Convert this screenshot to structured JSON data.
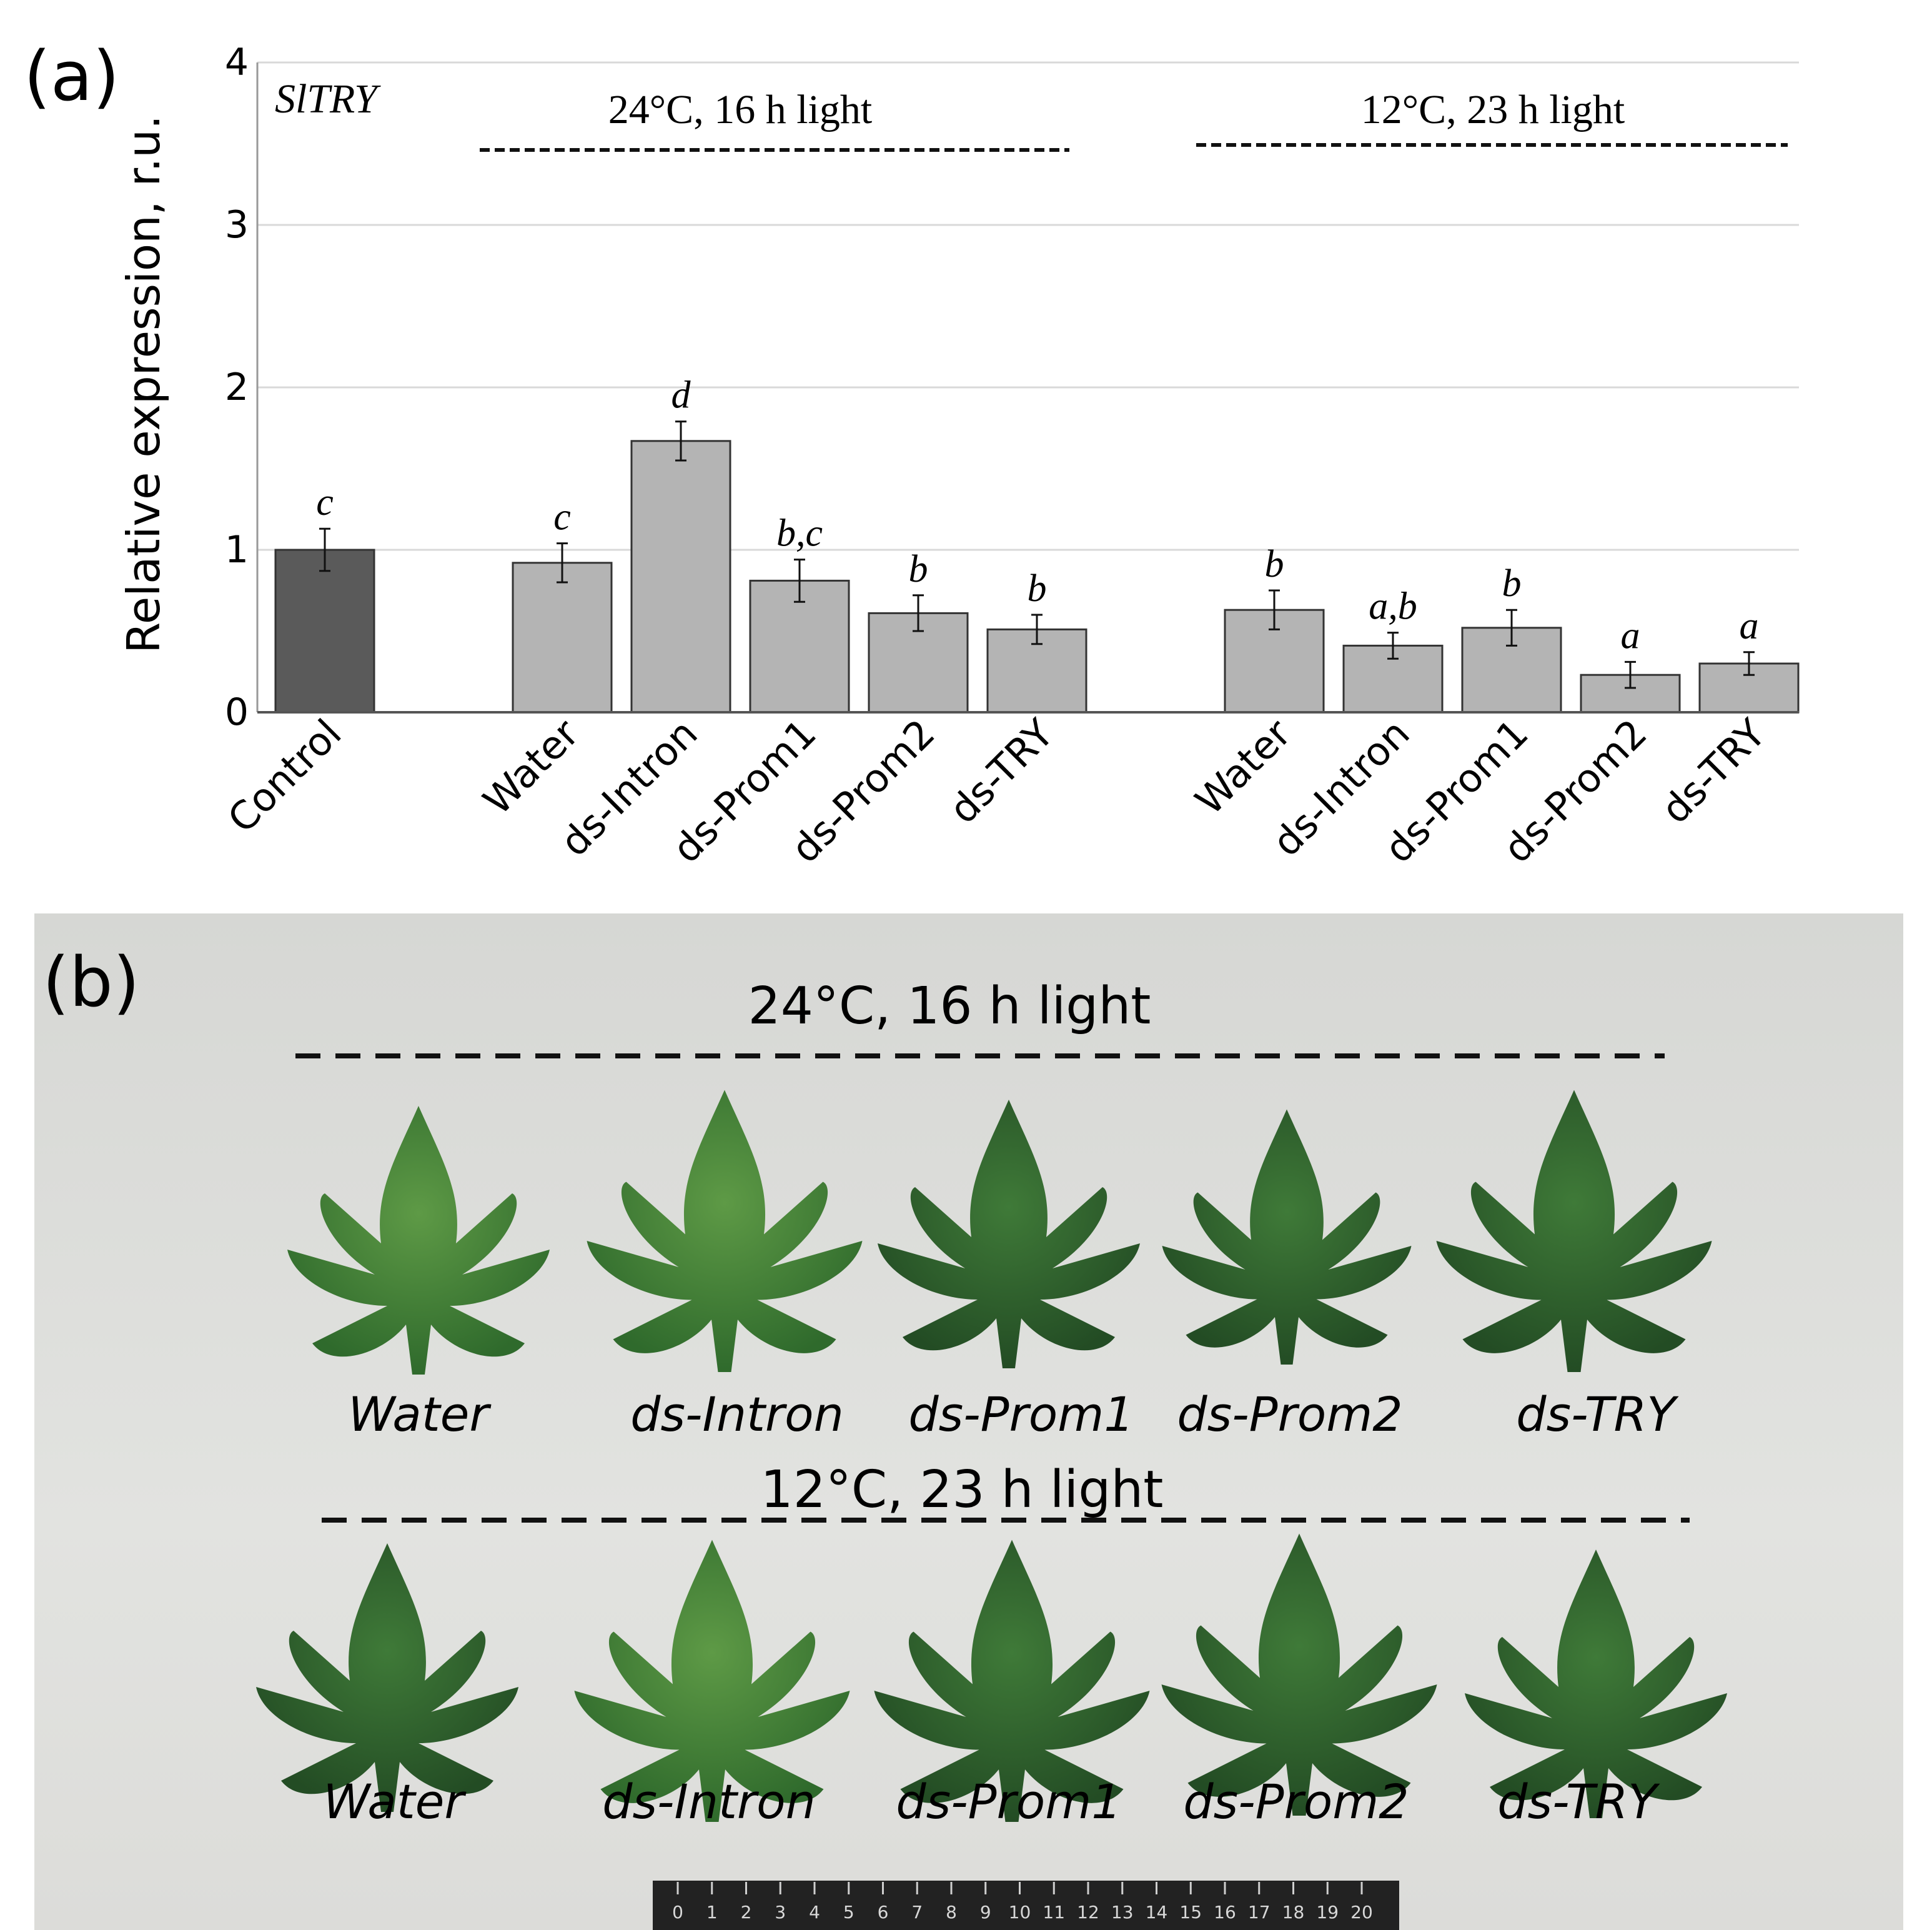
{
  "panel_a": {
    "label": "(a)",
    "gene": "SlTRY",
    "group1_title": "24°C, 16 h light",
    "group2_title": "12°C, 23 h light"
  },
  "chart_data": {
    "type": "bar",
    "title": "SlTRY",
    "xlabel": "",
    "ylabel": "Relative expression, r.u.",
    "ylim": [
      0,
      4
    ],
    "yticks": [
      0,
      1,
      2,
      3,
      4
    ],
    "grid": true,
    "categories": [
      "Control",
      "Water",
      "ds-Intron",
      "ds-Prom1",
      "ds-Prom2",
      "ds-TRY",
      "Water",
      "ds-Intron",
      "ds-Prom1",
      "ds-Prom2",
      "ds-TRY"
    ],
    "groups": [
      "",
      "24°C, 16 h light",
      "24°C, 16 h light",
      "24°C, 16 h light",
      "24°C, 16 h light",
      "24°C, 16 h light",
      "12°C, 23 h light",
      "12°C, 23 h light",
      "12°C, 23 h light",
      "12°C, 23 h light",
      "12°C, 23 h light"
    ],
    "values": [
      1.0,
      0.92,
      1.67,
      0.81,
      0.61,
      0.51,
      0.63,
      0.41,
      0.52,
      0.23,
      0.3
    ],
    "errors": [
      0.13,
      0.12,
      0.12,
      0.13,
      0.11,
      0.09,
      0.12,
      0.08,
      0.11,
      0.08,
      0.07
    ],
    "significance": [
      "c",
      "c",
      "d",
      "b,c",
      "b",
      "b",
      "b",
      "a,b",
      "b",
      "a",
      "a"
    ],
    "colors": [
      "#5a5a5a",
      "#b4b4b4",
      "#b4b4b4",
      "#b4b4b4",
      "#b4b4b4",
      "#b4b4b4",
      "#b4b4b4",
      "#b4b4b4",
      "#b4b4b4",
      "#b4b4b4",
      "#b4b4b4"
    ]
  },
  "panel_b": {
    "label": "(b)",
    "row1_title": "24°C, 16 h light",
    "row2_title": "12°C, 23 h light",
    "row1_labels": [
      "Water",
      "ds-Intron",
      "ds-Prom1",
      "ds-Prom2",
      "ds-TRY"
    ],
    "row2_labels": [
      "Water",
      "ds-Intron",
      "ds-Prom1",
      "ds-Prom2",
      "ds-TRY"
    ],
    "ruler_ticks": [
      "0",
      "1",
      "2",
      "3",
      "4",
      "5",
      "6",
      "7",
      "8",
      "9",
      "10",
      "11",
      "12",
      "13",
      "14",
      "15",
      "16",
      "17",
      "18",
      "19",
      "20"
    ],
    "photo_background": "#d8d8d6",
    "leaf_color_light": "#4f8a3c",
    "leaf_color_dark": "#2c5a2c"
  }
}
